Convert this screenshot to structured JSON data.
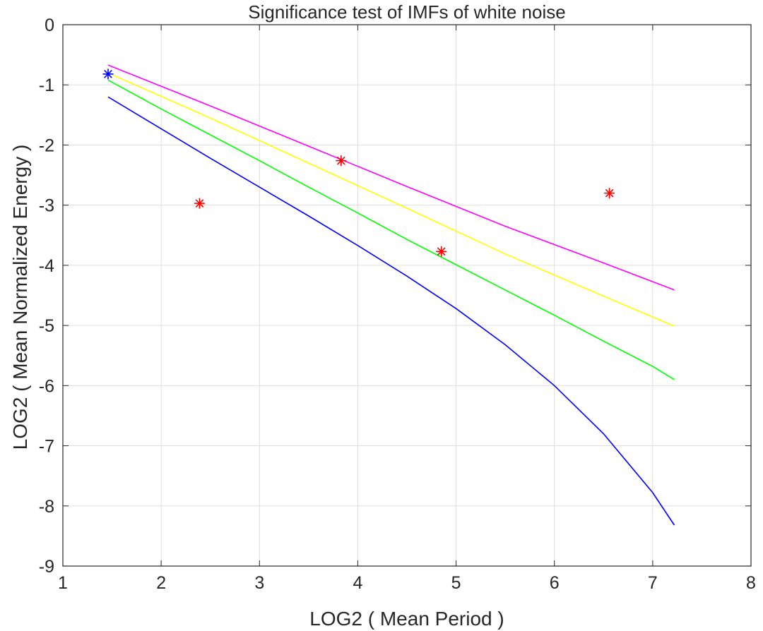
{
  "chart_data": {
    "type": "line",
    "title": "Significance test of IMFs of white noise",
    "xlabel": "LOG2 ( Mean Period )",
    "ylabel": "LOG2 ( Mean Normalized Energy )",
    "xlim": [
      1,
      8
    ],
    "ylim": [
      -9,
      0
    ],
    "xticks": [
      1,
      2,
      3,
      4,
      5,
      6,
      7,
      8
    ],
    "xtick_labels": [
      "1",
      "2",
      "3",
      "4",
      "5",
      "6",
      "7",
      "8"
    ],
    "yticks": [
      0,
      -1,
      -2,
      -3,
      -4,
      -5,
      -6,
      -7,
      -8,
      -9
    ],
    "ytick_labels": [
      "0",
      "-1",
      "-2",
      "-3",
      "-4",
      "-5",
      "-6",
      "-7",
      "-8",
      "-9"
    ],
    "grid": true,
    "series": [
      {
        "name": "blue-curve",
        "color": "#0000ff",
        "style": "line",
        "x": [
          1.46,
          2.0,
          2.5,
          3.0,
          3.5,
          4.0,
          4.5,
          5.0,
          5.5,
          6.0,
          6.5,
          7.0,
          7.22
        ],
        "y": [
          -1.2,
          -1.73,
          -2.22,
          -2.7,
          -3.18,
          -3.67,
          -4.18,
          -4.72,
          -5.32,
          -6.0,
          -6.8,
          -7.78,
          -8.32
        ]
      },
      {
        "name": "green-curve",
        "color": "#00ff00",
        "style": "line",
        "x": [
          1.46,
          2.0,
          2.5,
          3.0,
          3.5,
          4.0,
          4.5,
          5.0,
          5.5,
          6.0,
          6.5,
          7.0,
          7.22
        ],
        "y": [
          -0.92,
          -1.4,
          -1.83,
          -2.26,
          -2.7,
          -3.13,
          -3.57,
          -3.99,
          -4.41,
          -4.83,
          -5.26,
          -5.68,
          -5.9
        ]
      },
      {
        "name": "yellow-curve",
        "color": "#ffff00",
        "style": "line",
        "x": [
          1.46,
          2.5,
          3.5,
          4.5,
          5.5,
          6.5,
          7.22
        ],
        "y": [
          -0.8,
          -1.55,
          -2.3,
          -3.05,
          -3.81,
          -4.51,
          -5.01
        ]
      },
      {
        "name": "magenta-curve",
        "color": "#ff00ff",
        "style": "line",
        "x": [
          1.46,
          2.5,
          3.5,
          4.5,
          5.5,
          6.5,
          7.22
        ],
        "y": [
          -0.67,
          -1.35,
          -2.02,
          -2.69,
          -3.35,
          -3.96,
          -4.41
        ]
      },
      {
        "name": "imf-points",
        "color": "#ff0000",
        "style": "markers",
        "marker": "*",
        "x": [
          2.39,
          3.83,
          4.85,
          6.56
        ],
        "y": [
          -2.97,
          -2.26,
          -3.77,
          -2.8
        ]
      },
      {
        "name": "first-imf-point",
        "color": "#0000ff",
        "style": "markers",
        "marker": "*",
        "x": [
          1.46
        ],
        "y": [
          -0.82
        ]
      }
    ]
  }
}
